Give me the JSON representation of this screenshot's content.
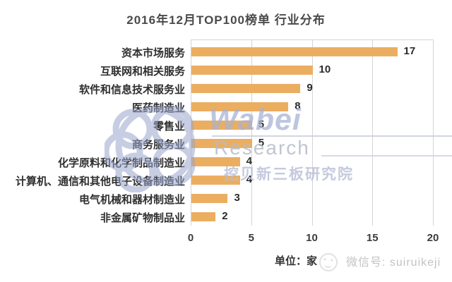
{
  "title": "2016年12月TOP100榜单 行业分布",
  "chart_data": {
    "type": "bar",
    "orientation": "horizontal",
    "title": "2016年12月TOP100榜单 行业分布",
    "categories": [
      "资本市场服务",
      "互联网和相关服务",
      "软件和信息技术服务业",
      "医药制造业",
      "零售业",
      "商务服务业",
      "化学原料和化学制品制造业",
      "计算机、通信和其他电子设备制造业",
      "电气机械和器材制造业",
      "非金属矿物制品业"
    ],
    "values": [
      17,
      10,
      9,
      8,
      5,
      5,
      4,
      4,
      3,
      2
    ],
    "xlabel": "",
    "ylabel": "",
    "xlim": [
      0,
      20
    ],
    "x_ticks": [
      0,
      5,
      10,
      15,
      20
    ],
    "grid": true,
    "legend": "none",
    "bar_color": "#ebae60",
    "value_labels_shown": true
  },
  "footer": {
    "unit_label": "单位：家",
    "wechat_label": "微信号: suiruikeji"
  },
  "watermark": {
    "brand": "Wabei",
    "subtitle": "Research",
    "cn_name": "挖贝新三板研究院",
    "color": "#a9b2d3"
  }
}
